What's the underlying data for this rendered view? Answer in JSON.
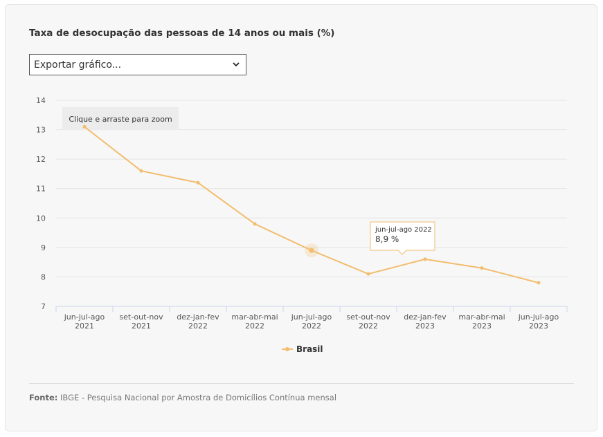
{
  "chart_title": "Taxa de desocupação das pessoas de 14 anos ou mais (%)",
  "export_select": {
    "value": "Exportar gráfico..."
  },
  "zoom_hint": "Clique e arraste para zoom",
  "tooltip": {
    "category": "jun-jul-ago 2022",
    "value_text": "8,9 %"
  },
  "source": {
    "label": "Fonte:",
    "text": "IBGE - Pesquisa Nacional por Amostra de Domicílios Contínua mensal"
  },
  "colors": {
    "series": "#f2bd6d",
    "grid": "#e4e4e4",
    "axis": "#ccd6eb",
    "background": "#f7f7f7"
  },
  "chart_data": {
    "type": "line",
    "title": "Taxa de desocupação das pessoas de 14 anos ou mais (%)",
    "categories": [
      [
        "jun-jul-ago",
        "2021"
      ],
      [
        "set-out-nov",
        "2021"
      ],
      [
        "dez-jan-fev",
        "2022"
      ],
      [
        "mar-abr-mai",
        "2022"
      ],
      [
        "jun-jul-ago",
        "2022"
      ],
      [
        "set-out-nov",
        "2022"
      ],
      [
        "dez-jan-fev",
        "2023"
      ],
      [
        "mar-abr-mai",
        "2023"
      ],
      [
        "jun-jul-ago",
        "2023"
      ]
    ],
    "series": [
      {
        "name": "Brasil",
        "values": [
          13.1,
          11.6,
          11.2,
          9.8,
          8.9,
          8.1,
          8.6,
          8.3,
          7.8
        ]
      }
    ],
    "ylim": [
      7,
      14
    ],
    "yticks": [
      7,
      8,
      9,
      10,
      11,
      12,
      13,
      14
    ],
    "grid": true,
    "legend": "bottom-center",
    "highlighted_index": 4
  }
}
